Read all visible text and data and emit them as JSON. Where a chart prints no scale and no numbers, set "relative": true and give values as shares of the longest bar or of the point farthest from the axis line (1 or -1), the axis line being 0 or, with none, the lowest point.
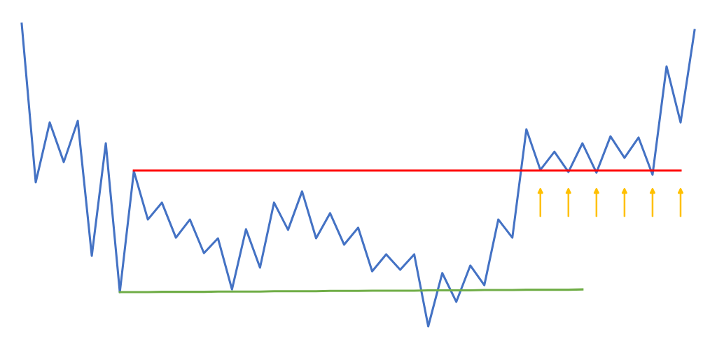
{
  "chart_data": {
    "type": "line",
    "relative": true,
    "marker": "none",
    "line_style": "solid",
    "categories": [
      null,
      null,
      null,
      null,
      null,
      null,
      null,
      null,
      null,
      null,
      null,
      null,
      null,
      null,
      null,
      null,
      null,
      null,
      null,
      null,
      null,
      null,
      null,
      null,
      null,
      null,
      null,
      null,
      null,
      null,
      null,
      null,
      null,
      null,
      null,
      null,
      null,
      null,
      null,
      null,
      null,
      null,
      null,
      null,
      null,
      null,
      null,
      null,
      null
    ],
    "series": [
      {
        "color": "#4472c4",
        "values": [
          1.0,
          0.476,
          0.674,
          0.543,
          0.679,
          0.233,
          0.605,
          0.113,
          0.513,
          0.353,
          0.409,
          0.293,
          0.353,
          0.242,
          0.291,
          0.122,
          0.321,
          0.194,
          0.409,
          0.319,
          0.446,
          0.291,
          0.374,
          0.27,
          0.326,
          0.182,
          0.238,
          0.187,
          0.238,
          0,
          0.176,
          0.081,
          0.201,
          0.136,
          0.353,
          0.293,
          0.651,
          0.517,
          0.577,
          0.51,
          0.605,
          0.508,
          0.628,
          0.557,
          0.624,
          0.501,
          0.859,
          0.674,
          0.979
        ]
      },
      {
        "color": "#ff0000",
        "values": [
          null,
          null,
          null,
          null,
          null,
          null,
          null,
          null,
          0.515,
          0.515,
          0.515,
          0.515,
          0.515,
          0.515,
          0.515,
          0.515,
          0.515,
          0.515,
          0.515,
          0.515,
          0.515,
          0.515,
          0.515,
          0.515,
          0.515,
          0.515,
          0.515,
          0.515,
          0.515,
          0.515,
          0.515,
          0.515,
          0.515,
          0.515,
          0.515,
          0.515,
          0.515,
          0.515,
          0.515,
          0.515,
          0.515,
          0.515,
          0.515,
          0.515,
          0.515,
          0.515,
          0.515,
          0.515,
          null
        ]
      },
      {
        "color": "#70ad47",
        "values": [
          null,
          null,
          null,
          null,
          null,
          null,
          null,
          0.113,
          0.113,
          0.113,
          0.114,
          0.114,
          0.114,
          0.114,
          0.115,
          0.115,
          0.115,
          0.115,
          0.116,
          0.116,
          0.116,
          0.116,
          0.117,
          0.117,
          0.117,
          0.118,
          0.118,
          0.118,
          0.118,
          0.119,
          0.119,
          0.119,
          0.119,
          0.12,
          0.12,
          0.12,
          0.121,
          0.121,
          0.121,
          0.121,
          0.122,
          null,
          null,
          null,
          null,
          null,
          null,
          null,
          null
        ]
      }
    ]
  }
}
